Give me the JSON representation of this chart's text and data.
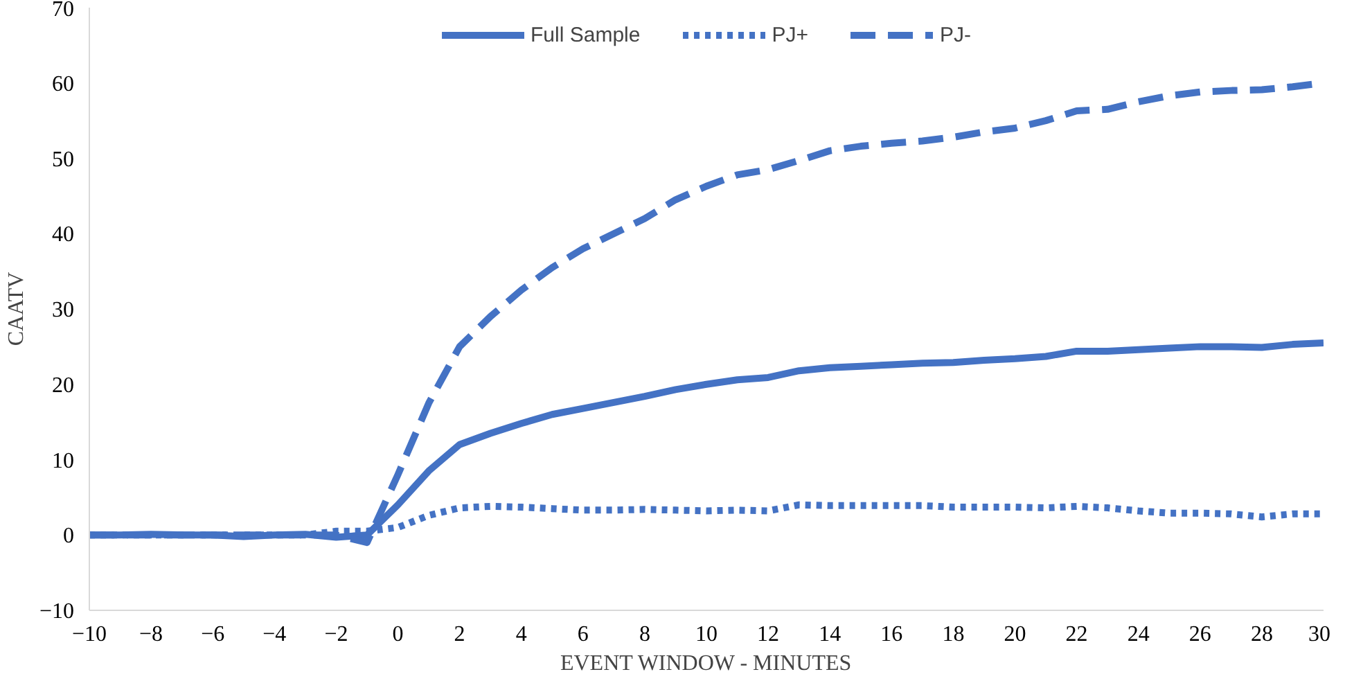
{
  "chart_data": {
    "type": "line",
    "xlabel": "EVENT WINDOW - MINUTES",
    "ylabel": "CAATV",
    "x": [
      -10,
      -9,
      -8,
      -7,
      -6,
      -5,
      -4,
      -3,
      -2,
      -1,
      0,
      1,
      2,
      3,
      4,
      5,
      6,
      7,
      8,
      9,
      10,
      11,
      12,
      13,
      14,
      15,
      16,
      17,
      18,
      19,
      20,
      21,
      22,
      23,
      24,
      25,
      26,
      27,
      28,
      29,
      30
    ],
    "series": [
      {
        "name": "Full Sample",
        "color": "#4472c4",
        "line_style": "solid",
        "values": [
          0,
          0,
          0.1,
          0,
          0,
          -0.2,
          0,
          0.1,
          -0.3,
          0,
          4,
          8.5,
          12,
          13.5,
          14.8,
          16,
          16.8,
          17.6,
          18.4,
          19.3,
          20,
          20.6,
          20.9,
          21.8,
          22.2,
          22.4,
          22.6,
          22.8,
          22.9,
          23.2,
          23.4,
          23.7,
          24.4,
          24.4,
          24.6,
          24.8,
          25,
          25,
          24.9,
          25.3,
          25.5
        ]
      },
      {
        "name": "PJ+",
        "color": "#4472c4",
        "line_style": "dotted",
        "values": [
          0,
          0,
          0,
          0,
          0,
          0,
          0,
          0,
          0.5,
          0.5,
          1,
          2.6,
          3.6,
          3.8,
          3.7,
          3.5,
          3.3,
          3.3,
          3.4,
          3.3,
          3.2,
          3.3,
          3.2,
          4,
          3.9,
          3.9,
          3.9,
          3.9,
          3.7,
          3.7,
          3.7,
          3.6,
          3.8,
          3.6,
          3.2,
          2.9,
          2.9,
          2.8,
          2.4,
          2.8,
          2.8
        ]
      },
      {
        "name": "PJ-",
        "color": "#4472c4",
        "line_style": "dashed",
        "values": [
          0,
          0,
          0,
          0,
          0,
          0,
          0,
          0,
          0,
          -1,
          8,
          17.5,
          25,
          29,
          32.5,
          35.5,
          38,
          40,
          42,
          44.5,
          46.3,
          47.8,
          48.5,
          49.7,
          51,
          51.6,
          52,
          52.3,
          52.8,
          53.5,
          54,
          55,
          56.3,
          56.5,
          57.5,
          58.3,
          58.8,
          59,
          59.1,
          59.5,
          60
        ]
      }
    ],
    "xlim": [
      -10,
      30
    ],
    "xticks": [
      -10,
      -8,
      -6,
      -4,
      -2,
      0,
      2,
      4,
      6,
      8,
      10,
      12,
      14,
      16,
      18,
      20,
      22,
      24,
      26,
      28,
      30
    ],
    "ylim": [
      -10,
      70
    ],
    "yticks": [
      -10,
      0,
      10,
      20,
      30,
      40,
      50,
      60,
      70
    ],
    "grid": false,
    "legend": "top",
    "marker": "none"
  }
}
